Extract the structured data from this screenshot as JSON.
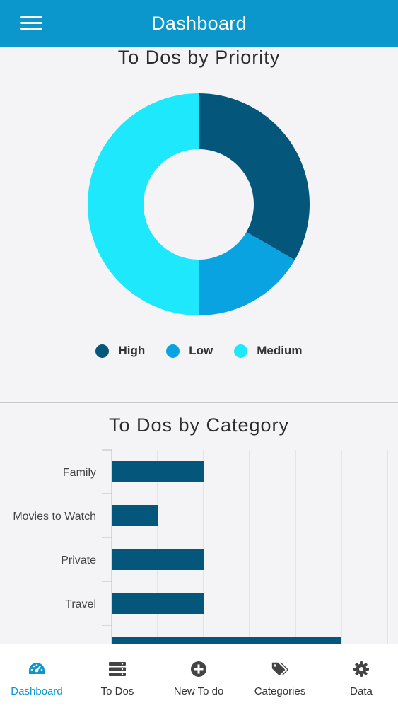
{
  "header": {
    "title": "Dashboard",
    "menu_icon": "hamburger-menu-icon"
  },
  "priority_chart": {
    "title": "To Dos by Priority",
    "legend": [
      {
        "label": "High",
        "color": "#04577b"
      },
      {
        "label": "Low",
        "color": "#0aa3e1"
      },
      {
        "label": "Medium",
        "color": "#1ee8fb"
      }
    ]
  },
  "category_chart": {
    "title": "To Dos by Category"
  },
  "chart_data": [
    {
      "type": "pie",
      "title": "To Dos by Priority",
      "donut": true,
      "categories": [
        "High",
        "Low",
        "Medium"
      ],
      "values": [
        2,
        1,
        3
      ],
      "colors": [
        "#04577b",
        "#0aa3e1",
        "#1ee8fb"
      ],
      "legend": "bottom"
    },
    {
      "type": "bar",
      "orientation": "horizontal",
      "title": "To Dos by Category",
      "categories": [
        "Family",
        "Movies to Watch",
        "Private",
        "Travel",
        ""
      ],
      "values": [
        2,
        1,
        2,
        2,
        5
      ],
      "xlim": [
        0,
        6
      ],
      "grid": true,
      "color": "#04577b"
    }
  ],
  "tabbar": {
    "tabs": [
      {
        "label": "Dashboard",
        "icon": "speedometer-icon",
        "active": true
      },
      {
        "label": "To Dos",
        "icon": "list-icon",
        "active": false
      },
      {
        "label": "New To do",
        "icon": "plus-circle-icon",
        "active": false
      },
      {
        "label": "Categories",
        "icon": "tags-icon",
        "active": false
      },
      {
        "label": "Data",
        "icon": "gear-icon",
        "active": false
      }
    ],
    "active_color": "#0b96cc",
    "inactive_color": "#444444"
  }
}
